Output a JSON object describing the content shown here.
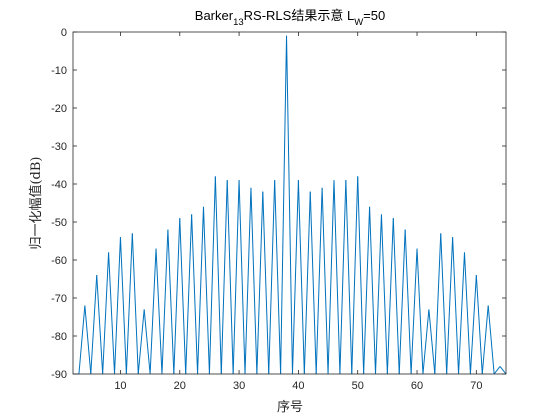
{
  "chart_data": {
    "type": "line",
    "title": {
      "prefix": "Barker",
      "prefix_sub": "13",
      "middle": "RS-RLS结果示意 L",
      "middle_sub": "W",
      "suffix": "=50"
    },
    "xlabel": "序号",
    "ylabel": "归一化幅值(dB)",
    "xlim": [
      2,
      75
    ],
    "ylim": [
      -90,
      0
    ],
    "xticks": [
      10,
      20,
      30,
      40,
      50,
      60,
      70
    ],
    "yticks": [
      0,
      -10,
      -20,
      -30,
      -40,
      -50,
      -60,
      -70,
      -80,
      -90
    ],
    "grid": false,
    "line_color": "#0072BD",
    "series": [
      {
        "x": [
          2,
          3,
          4,
          5,
          6,
          7,
          8,
          9,
          10,
          11,
          12,
          13,
          14,
          15,
          16,
          17,
          18,
          19,
          20,
          21,
          22,
          23,
          24,
          25,
          26,
          27,
          28,
          29,
          30,
          31,
          32,
          33,
          34,
          35,
          36,
          37,
          38,
          39,
          40,
          41,
          42,
          43,
          44,
          45,
          46,
          47,
          48,
          49,
          50,
          51,
          52,
          53,
          54,
          55,
          56,
          57,
          58,
          59,
          60,
          61,
          62,
          63,
          64,
          65,
          66,
          67,
          68,
          69,
          70,
          71,
          72,
          73,
          74,
          75
        ],
        "values": [
          -90,
          -90,
          -72,
          -90,
          -64,
          -90,
          -58,
          -90,
          -54,
          -90,
          -53,
          -90,
          -73,
          -90,
          -57,
          -90,
          -52,
          -90,
          -49,
          -90,
          -48,
          -90,
          -46,
          -90,
          -38,
          -90,
          -39,
          -90,
          -39,
          -90,
          -41,
          -90,
          -42,
          -90,
          -39,
          -90,
          -1,
          -90,
          -39,
          -90,
          -42,
          -90,
          -41,
          -90,
          -39,
          -90,
          -39,
          -90,
          -38,
          -90,
          -46,
          -90,
          -48,
          -90,
          -49,
          -90,
          -52,
          -90,
          -57,
          -90,
          -73,
          -90,
          -53,
          -90,
          -54,
          -90,
          -58,
          -90,
          -64,
          -90,
          -72,
          -90,
          -88,
          -90
        ]
      }
    ]
  }
}
